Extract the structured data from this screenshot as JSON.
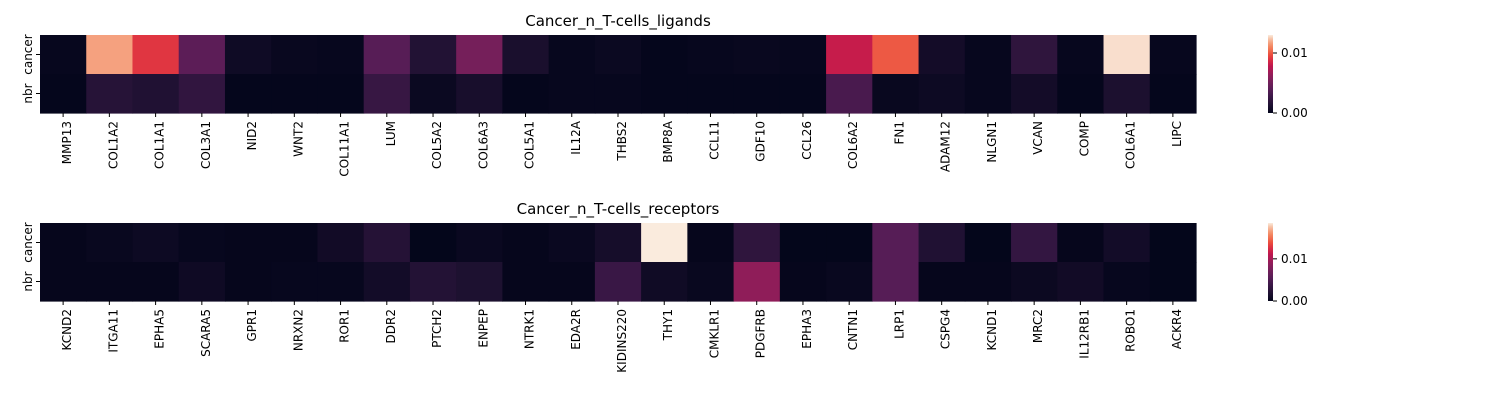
{
  "chart_data": [
    {
      "type": "heatmap",
      "title": "Cancer_n_T-cells_ligands",
      "rows": [
        "cancer",
        "nbr"
      ],
      "columns": [
        "MMP13",
        "COL1A2",
        "COL1A1",
        "COL3A1",
        "NID2",
        "WNT2",
        "COL11A1",
        "LUM",
        "COL5A2",
        "COL6A3",
        "COL5A1",
        "IL12A",
        "THBS2",
        "BMP8A",
        "CCL11",
        "GDF10",
        "CCL26",
        "COL6A2",
        "FN1",
        "ADAM12",
        "NLGN1",
        "VCAN",
        "COMP",
        "COL6A1",
        "LIPC"
      ],
      "values": [
        [
          0.0002,
          0.0117,
          0.0091,
          0.0041,
          0.0006,
          0.0003,
          0.0002,
          0.0039,
          0.0015,
          0.0052,
          0.0011,
          0.0002,
          0.0004,
          0.0001,
          0.0002,
          0.0003,
          0.0002,
          0.0081,
          0.01,
          0.0008,
          0.0002,
          0.0021,
          0.0002,
          0.0128,
          0.0002
        ],
        [
          0.0001,
          0.0017,
          0.0014,
          0.0022,
          0.0001,
          0.0001,
          0.0001,
          0.0025,
          0.0004,
          0.001,
          0.0001,
          0.0002,
          0.0002,
          0.0001,
          0.0001,
          0.0001,
          0.0001,
          0.0033,
          0.0003,
          0.0005,
          0.0002,
          0.0008,
          0.0001,
          0.0012,
          0.0001
        ]
      ],
      "vmin": 0,
      "vmax": 0.013,
      "colorbar_ticks": [
        {
          "value": 0.0,
          "label": "0.00"
        },
        {
          "value": 0.01,
          "label": "0.01"
        }
      ]
    },
    {
      "type": "heatmap",
      "title": "Cancer_n_T-cells_receptors",
      "rows": [
        "cancer",
        "nbr"
      ],
      "columns": [
        "KCND2",
        "ITGA11",
        "EPHA5",
        "SCARA5",
        "GPR1",
        "NRXN2",
        "ROR1",
        "DDR2",
        "PTCH2",
        "ENPEP",
        "NTRK1",
        "EDA2R",
        "KIDINS220",
        "THY1",
        "CMKLR1",
        "PDGFRB",
        "EPHA3",
        "CNTN1",
        "LRP1",
        "CSPG4",
        "KCND1",
        "MRC2",
        "IL12RB1",
        "ROBO1",
        "ACKR4"
      ],
      "values": [
        [
          0.0002,
          0.0004,
          0.0007,
          0.0003,
          0.0002,
          0.0002,
          0.001,
          0.0023,
          0.0001,
          0.0005,
          0.0002,
          0.0005,
          0.0013,
          0.0185,
          0.0002,
          0.003,
          0.0001,
          0.0001,
          0.0055,
          0.002,
          0.0001,
          0.0033,
          0.0002,
          0.0011,
          0.0001
        ],
        [
          0.0002,
          0.0002,
          0.0002,
          0.0008,
          0.0002,
          0.0003,
          0.0003,
          0.0011,
          0.0022,
          0.0018,
          0.0002,
          0.0002,
          0.0037,
          0.0009,
          0.0004,
          0.0088,
          0.0002,
          0.0004,
          0.0055,
          0.0002,
          0.0002,
          0.0006,
          0.001,
          0.0003,
          0.0001
        ]
      ],
      "vmin": 0,
      "vmax": 0.0185,
      "colorbar_ticks": [
        {
          "value": 0.0,
          "label": "0.00"
        },
        {
          "value": 0.01,
          "label": "0.01"
        }
      ]
    }
  ]
}
